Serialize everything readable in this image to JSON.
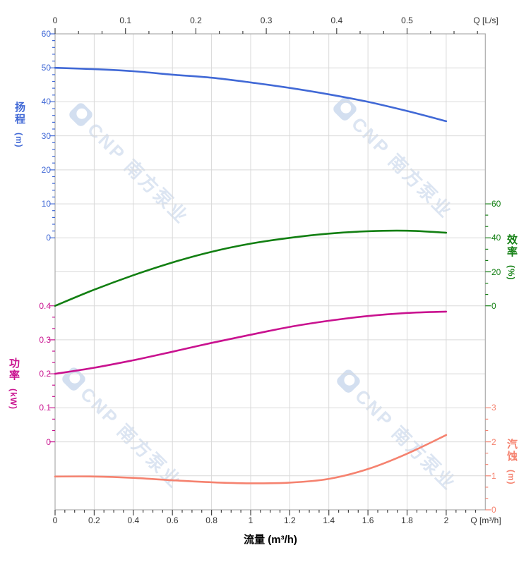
{
  "watermark": {
    "text": "CNP 南方泵业"
  },
  "colors": {
    "head": "#4169d6",
    "efficiency": "#127f12",
    "power": "#c9128f",
    "npsh": "#f5826f",
    "grid": "#d9d9d9",
    "frame": "#acacac",
    "axis_text_dark": "#333333",
    "watermark": "#dce5f2"
  },
  "axes": {
    "top": {
      "label": "Q [L/s]",
      "ticks": [
        "0",
        "0.1",
        "0.2",
        "0.3",
        "0.4",
        "0.5"
      ]
    },
    "bottom": {
      "label": "Q [m³/h]",
      "xlabel": "流量 (m³/h)",
      "ticks": [
        "0",
        "0.2",
        "0.4",
        "0.6",
        "0.8",
        "1",
        "1.2",
        "1.4",
        "1.6",
        "1.8",
        "2"
      ]
    },
    "head": {
      "title": "扬程",
      "unit": "(m)",
      "ticks": [
        "60",
        "50",
        "40",
        "30",
        "20",
        "10",
        "0"
      ]
    },
    "power": {
      "title": "功率",
      "unit": "(kW)",
      "ticks": [
        "0.4",
        "0.3",
        "0.2",
        "0.1",
        "0"
      ]
    },
    "efficiency": {
      "title": "效率",
      "unit": "(%)",
      "ticks": [
        "60",
        "40",
        "20",
        "0"
      ]
    },
    "npsh": {
      "title": "汽蚀",
      "unit": "(m)",
      "ticks": [
        "3",
        "2",
        "1",
        "0"
      ]
    }
  },
  "chart_data": {
    "type": "line",
    "x": [
      0,
      0.2,
      0.4,
      0.6,
      0.8,
      1.0,
      1.2,
      1.4,
      1.6,
      1.8,
      2.0
    ],
    "xlabel": "流量 (m³/h)",
    "x_units_bottom": "m³/h",
    "x_units_top": "L/s",
    "x_range_shown": [
      0,
      2.2
    ],
    "top_axis_ticks_Ls": [
      0,
      0.1,
      0.2,
      0.3,
      0.4,
      0.5
    ],
    "grid": true,
    "series": [
      {
        "name": "扬程 (Head)",
        "unit": "m",
        "axis": "head",
        "displayed_axis_range": [
          0,
          60
        ],
        "color": "#4169d6",
        "values": [
          50.0,
          49.6,
          49.0,
          48.0,
          47.1,
          45.7,
          44.1,
          42.2,
          40.0,
          37.3,
          34.3
        ]
      },
      {
        "name": "效率 (Efficiency)",
        "unit": "%",
        "axis": "efficiency",
        "displayed_axis_range": [
          0,
          60
        ],
        "color": "#127f12",
        "values": [
          0.0,
          9.5,
          18.0,
          25.5,
          31.8,
          36.6,
          40.0,
          42.5,
          43.9,
          44.2,
          43.0
        ]
      },
      {
        "name": "功率 (Power)",
        "unit": "kW",
        "axis": "power",
        "displayed_axis_range": [
          0,
          0.4
        ],
        "color": "#c9128f",
        "values": [
          0.2,
          0.218,
          0.24,
          0.265,
          0.291,
          0.315,
          0.338,
          0.356,
          0.37,
          0.379,
          0.383
        ]
      },
      {
        "name": "汽蚀 (NPSH)",
        "unit": "m",
        "axis": "npsh",
        "displayed_axis_range": [
          0,
          3
        ],
        "color": "#f5826f",
        "values": [
          0.98,
          0.98,
          0.94,
          0.87,
          0.81,
          0.78,
          0.8,
          0.91,
          1.2,
          1.65,
          2.2
        ]
      }
    ]
  }
}
